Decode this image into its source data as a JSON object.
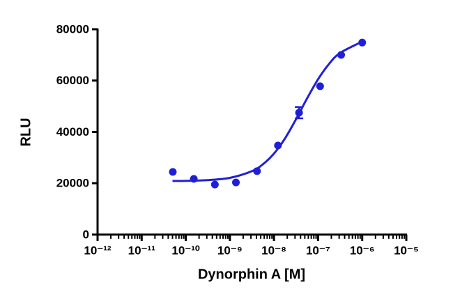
{
  "chart_data": {
    "type": "scatter",
    "xlabel": "Dynorphin A [M]",
    "ylabel": "RLU",
    "xscale": "log",
    "xlim": [
      1e-12,
      1e-05
    ],
    "xticks": [
      {
        "value": 1e-12,
        "label": "10⁻¹²"
      },
      {
        "value": 1e-11,
        "label": "10⁻¹¹"
      },
      {
        "value": 1e-10,
        "label": "10⁻¹⁰"
      },
      {
        "value": 1e-09,
        "label": "10⁻⁹"
      },
      {
        "value": 1e-08,
        "label": "10⁻⁸"
      },
      {
        "value": 1e-07,
        "label": "10⁻⁷"
      },
      {
        "value": 1e-06,
        "label": "10⁻⁶"
      },
      {
        "value": 1e-05,
        "label": "10⁻⁵"
      }
    ],
    "ylim": [
      0,
      80000
    ],
    "yticks": [
      0,
      20000,
      40000,
      60000,
      80000
    ],
    "color": "#1f1fd8",
    "series": [
      {
        "kind": "points",
        "x": [
          5.08e-11,
          1.52e-10,
          4.57e-10,
          1.37e-09,
          4.12e-09,
          1.23e-08,
          3.7e-08,
          1.11e-07,
          3.33e-07,
          1e-06
        ],
        "values": [
          24400,
          21700,
          19500,
          20300,
          24700,
          34700,
          47500,
          57800,
          70000,
          74800
        ],
        "errors": [
          null,
          null,
          null,
          null,
          null,
          null,
          2200,
          null,
          null,
          null
        ]
      },
      {
        "kind": "curve",
        "x": [
          5e-11,
          1e-10,
          3.16e-10,
          1e-09,
          3.16e-09,
          1e-08,
          5.62e-09,
          1.78e-08,
          3.16e-08,
          5.62e-08,
          1e-07,
          1.78e-07,
          3.16e-07,
          1e-06
        ],
        "values": [
          20870,
          20930,
          21220,
          22100,
          24710,
          31560,
          27400,
          37480,
          44930,
          53030,
          60530,
          66530,
          70760,
          75180
        ]
      }
    ]
  }
}
